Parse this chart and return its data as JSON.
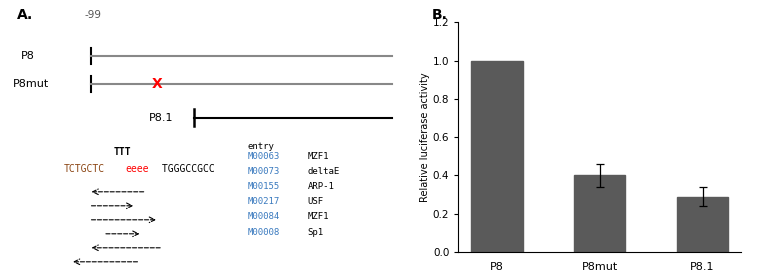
{
  "panel_A_label": "A.",
  "panel_B_label": "B.",
  "minus99_label": "-99",
  "bar_categories": [
    "P8",
    "P8mut",
    "P8.1"
  ],
  "bar_values": [
    1.0,
    0.4,
    0.29
  ],
  "bar_errors": [
    0.0,
    0.06,
    0.05
  ],
  "bar_color": "#5a5a5a",
  "ylabel": "Relative luciferase activity",
  "ylim": [
    0,
    1.2
  ],
  "yticks": [
    0,
    0.2,
    0.4,
    0.6,
    0.8,
    1.0,
    1.2
  ],
  "entries": [
    {
      "id": "M00063",
      "name": "MZF1"
    },
    {
      "id": "M00073",
      "name": "deltaE"
    },
    {
      "id": "M00155",
      "name": "ARP-1"
    },
    {
      "id": "M00217",
      "name": "USF"
    },
    {
      "id": "M00084",
      "name": "MZF1"
    },
    {
      "id": "M00008",
      "name": "Sp1"
    }
  ]
}
